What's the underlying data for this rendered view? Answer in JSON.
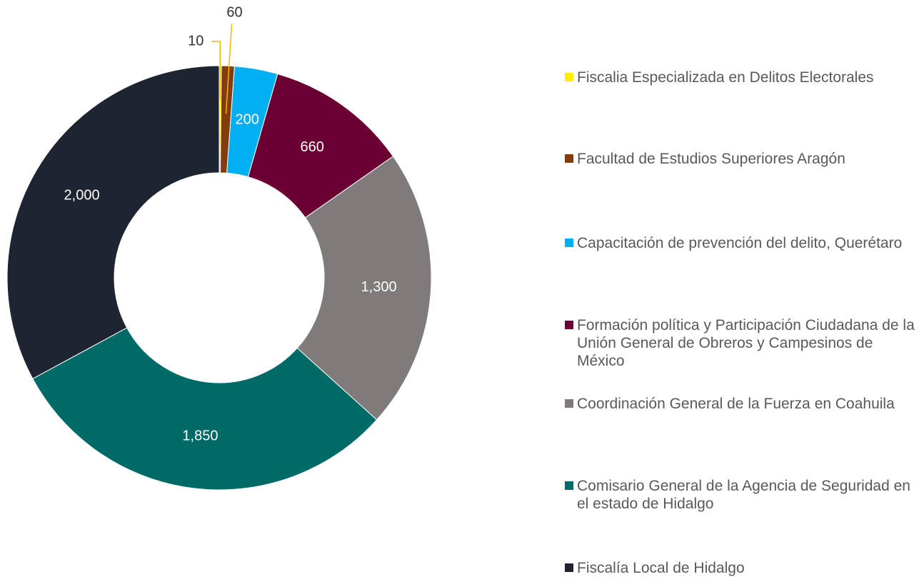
{
  "chart_data": {
    "type": "donut",
    "categories": [
      "Fiscalia Especializada en Delitos Electorales",
      "Facultad de Estudios Superiores Aragón",
      "Capacitación de prevención del delito, Querétaro",
      "Formación política y Participación Ciudadana de la Unión General de Obreros y Campesinos de México",
      "Coordinación General de la Fuerza en Coahuila",
      "Comisario General de la Agencia de Seguridad en el estado de Hidalgo",
      "Fiscalía Local de Hidalgo"
    ],
    "values": [
      10,
      60,
      200,
      660,
      1300,
      1850,
      2000
    ],
    "value_labels": [
      "10",
      "60",
      "200",
      "660",
      "1,300",
      "1,850",
      "2,000"
    ],
    "colors": [
      "#ffee00",
      "#843c0c",
      "#00b0f0",
      "#6b0033",
      "#7f7b7b",
      "#006b66",
      "#1f2530"
    ],
    "legend": "right"
  }
}
